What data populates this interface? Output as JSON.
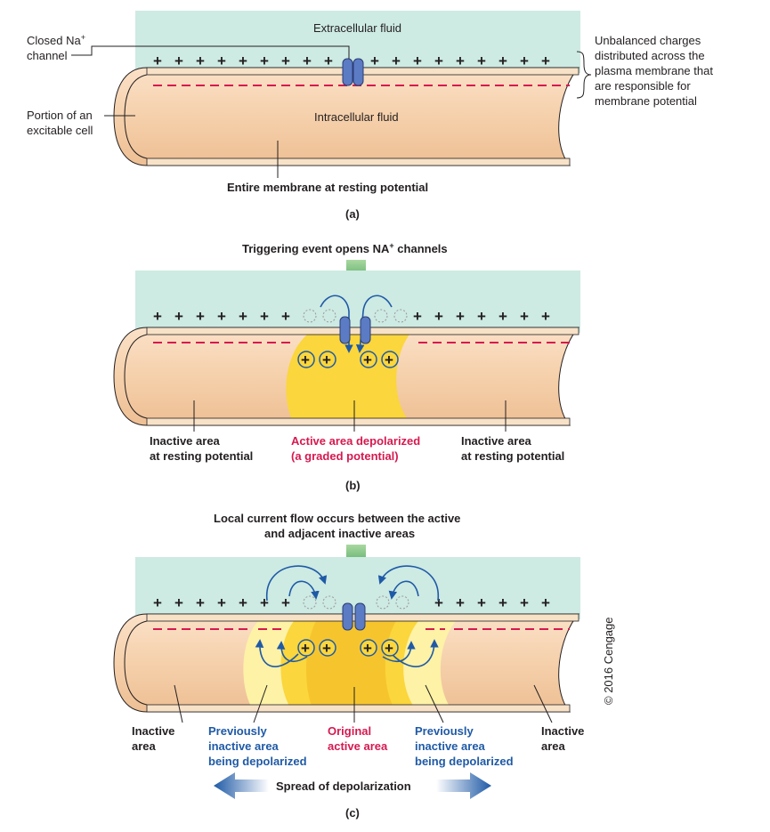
{
  "panel_a": {
    "caption": "(a)",
    "extracellular": "Extracellular fluid",
    "intracellular": "Intracellular fluid",
    "closed_channel_line1": "Closed Na",
    "closed_channel_sup": "+",
    "closed_channel_line2": "channel",
    "portion_line1": "Portion of an",
    "portion_line2": "excitable cell",
    "unbalanced": [
      "Unbalanced charges",
      "distributed across the",
      "plasma membrane that",
      "are responsible for",
      "membrane potential"
    ],
    "resting": "Entire membrane at resting potential"
  },
  "panel_b": {
    "caption": "(b)",
    "trigger_main": "Triggering event opens NA",
    "trigger_sup": "+",
    "trigger_end": " channels",
    "inactive_left": [
      "Inactive area",
      "at resting potential"
    ],
    "active": [
      "Active area depolarized",
      "(a graded potential)"
    ],
    "inactive_right": [
      "Inactive area",
      "at resting potential"
    ]
  },
  "panel_c": {
    "caption": "(c)",
    "title": [
      "Local current flow occurs between the active",
      "and adjacent inactive areas"
    ],
    "inactive_left": [
      "Inactive",
      "area"
    ],
    "prev_left": [
      "Previously",
      "inactive area",
      "being depolarized"
    ],
    "original": [
      "Original",
      "active area"
    ],
    "prev_right": [
      "Previously",
      "inactive area",
      "being depolarized"
    ],
    "inactive_right": [
      "Inactive",
      "area"
    ],
    "spread": "Spread of depolarization"
  },
  "copyright": "© 2016 Cengage",
  "colors": {
    "extracellular": "#cdeae3",
    "cell": "#f6d3b0",
    "active": "#fbd63c",
    "red_dash": "#d6194f",
    "blue": "#1f5aa6",
    "green_arrow": "#2f9a4a"
  }
}
